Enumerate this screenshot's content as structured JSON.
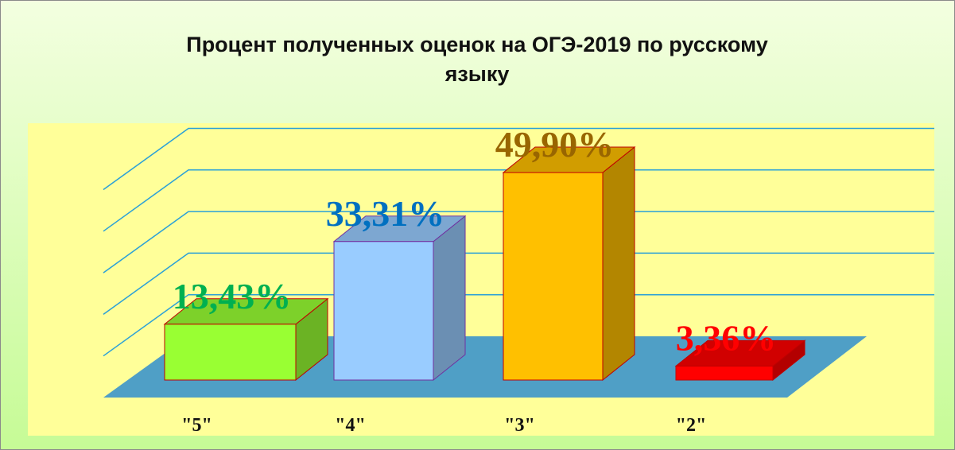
{
  "chart_data": {
    "type": "bar3d",
    "title": "Процент полученных оценок на ОГЭ-2019 по русскому языку",
    "categories": [
      "\"5\"",
      "\"4\"",
      "\"3\"",
      "\"2\""
    ],
    "values": [
      13.43,
      33.31,
      49.9,
      3.36
    ],
    "value_labels": [
      "13,43%",
      "33,31%",
      "49,90%",
      "3,36%"
    ],
    "colors": [
      "#99ff33",
      "#99ccff",
      "#ffc000",
      "#ff0000"
    ],
    "label_colors": [
      "#00b050",
      "#0070c0",
      "#996600",
      "#ff0000"
    ],
    "ylim": [
      0,
      50
    ],
    "yticks": [
      0,
      10,
      20,
      30,
      40,
      50
    ],
    "grid": true
  }
}
